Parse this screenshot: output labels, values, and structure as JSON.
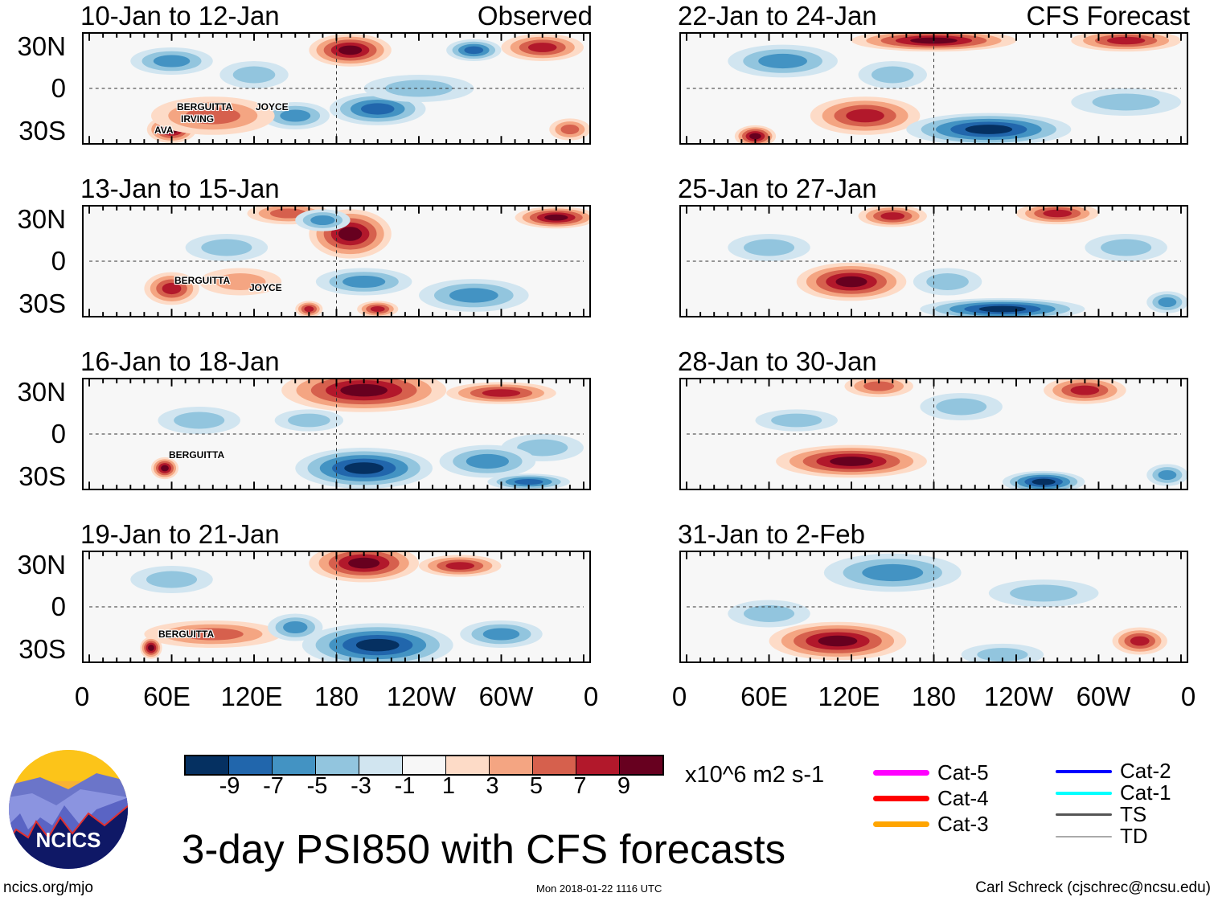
{
  "title": "3-day PSI850 with CFS forecasts",
  "panels": [
    {
      "title": "10-Jan to 12-Jan",
      "label": "Observed",
      "storms": [
        "BERGUITTA",
        "IRVING",
        "AVA",
        "JOYCE"
      ]
    },
    {
      "title": "13-Jan to 15-Jan",
      "label": "",
      "storms": [
        "BERGUITTA",
        "JOYCE"
      ]
    },
    {
      "title": "16-Jan to 18-Jan",
      "label": "",
      "storms": [
        "BERGUITTA"
      ]
    },
    {
      "title": "19-Jan to 21-Jan",
      "label": "",
      "storms": [
        "BERGUITTA"
      ]
    },
    {
      "title": "22-Jan to 24-Jan",
      "label": "CFS Forecast",
      "storms": []
    },
    {
      "title": "25-Jan to 27-Jan",
      "label": "",
      "storms": []
    },
    {
      "title": "28-Jan to 30-Jan",
      "label": "",
      "storms": []
    },
    {
      "title": "31-Jan to 2-Feb",
      "label": "",
      "storms": []
    }
  ],
  "lat_labels": [
    "30N",
    "0",
    "30S"
  ],
  "lon_labels": [
    "0",
    "60E",
    "120E",
    "180",
    "120W",
    "60W",
    "0"
  ],
  "colorbar": {
    "colors": [
      "#053061",
      "#2166ac",
      "#4393c3",
      "#92c5de",
      "#d1e5f0",
      "#f7f7f7",
      "#fddbc7",
      "#f4a582",
      "#d6604d",
      "#b2182b",
      "#67001f"
    ],
    "labels": [
      "-9",
      "-7",
      "-5",
      "-3",
      "-1",
      "1",
      "3",
      "5",
      "7",
      "9"
    ],
    "units": "x10^6 m2 s-1"
  },
  "legend": [
    {
      "label": "Cat-5",
      "color": "#ff00ff"
    },
    {
      "label": "Cat-4",
      "color": "#ff0000"
    },
    {
      "label": "Cat-3",
      "color": "#ffa500"
    },
    {
      "label": "Cat-2",
      "color": "#0000ff"
    },
    {
      "label": "Cat-1",
      "color": "#00ffff"
    },
    {
      "label": "TS",
      "color": "#555555"
    },
    {
      "label": "TD",
      "color": "#aaaaaa"
    }
  ],
  "logo_text": "NCICS",
  "footer": {
    "left": "ncics.org/mjo",
    "center": "Mon 2018-01-22 1116 UTC",
    "right": "Carl Schreck (cjschrec@ncsu.edu)"
  }
}
